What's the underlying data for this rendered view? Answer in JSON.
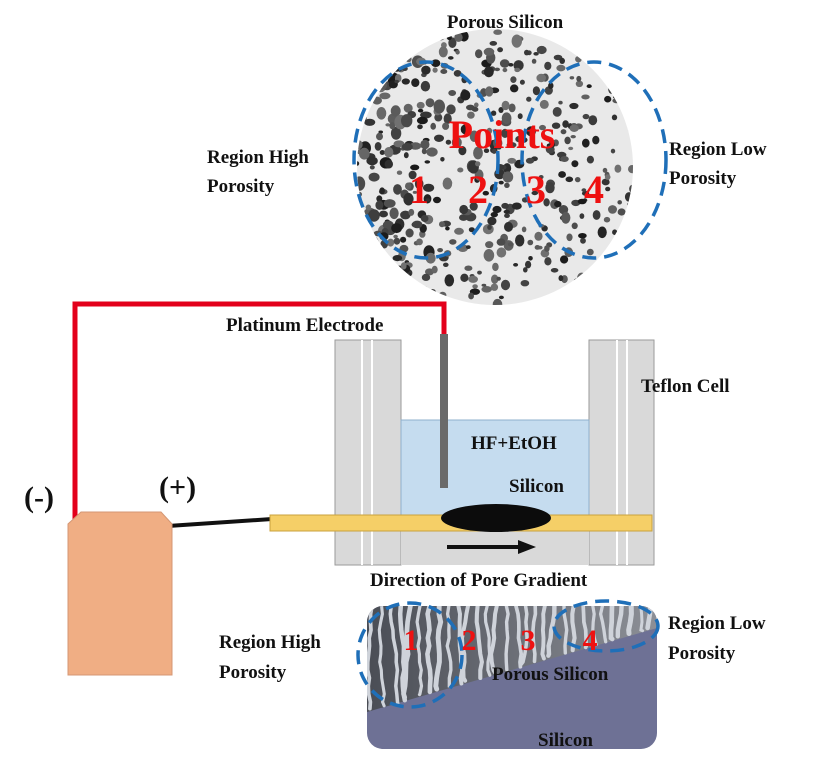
{
  "top": {
    "title": "Porous Silicon",
    "points_label": "Points",
    "points": [
      "1",
      "2",
      "3",
      "4"
    ],
    "left_region": [
      "Region High",
      "Porosity"
    ],
    "right_region": [
      "Region Low",
      "Porosity"
    ]
  },
  "cell": {
    "electrode": "Platinum Electrode",
    "teflon": "Teflon Cell",
    "solution": "HF+EtOH",
    "silicon": "Silicon",
    "direction": "Direction of Pore Gradient",
    "minus": "(-)",
    "plus": "(+)"
  },
  "bottom": {
    "points": [
      "1",
      "2",
      "3",
      "4"
    ],
    "left_region": [
      "Region High",
      "Porosity"
    ],
    "right_region": [
      "Region Low",
      "Porosity"
    ],
    "porous_label": "Porous Silicon",
    "silicon_label": "Silicon"
  },
  "colors": {
    "wire_red": "#e3001b",
    "dashed_blue": "#1f6fb8",
    "point_red": "#e11111",
    "power_supply": "#f0ae84",
    "sample_strip": "#f5cf67",
    "solution": "#c5dcef",
    "teflon": "#d9d9d9",
    "bulk_silicon": "#6e7195"
  }
}
